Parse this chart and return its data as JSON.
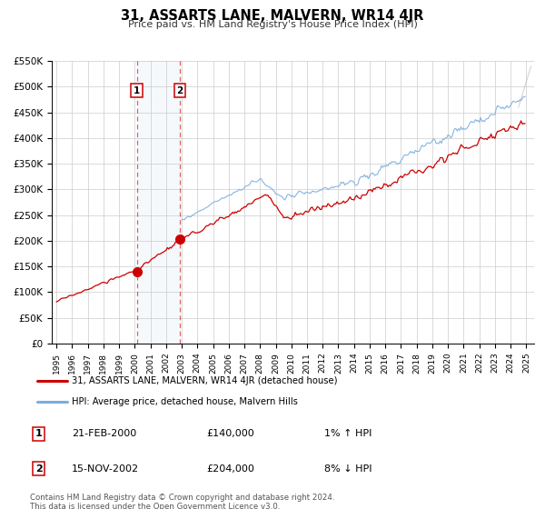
{
  "title": "31, ASSARTS LANE, MALVERN, WR14 4JR",
  "subtitle": "Price paid vs. HM Land Registry's House Price Index (HPI)",
  "ylim": [
    0,
    550000
  ],
  "yticks": [
    0,
    50000,
    100000,
    150000,
    200000,
    250000,
    300000,
    350000,
    400000,
    450000,
    500000,
    550000
  ],
  "ytick_labels": [
    "£0",
    "£50K",
    "£100K",
    "£150K",
    "£200K",
    "£250K",
    "£300K",
    "£350K",
    "£400K",
    "£450K",
    "£500K",
    "£550K"
  ],
  "xlim_start": 1994.7,
  "xlim_end": 2025.5,
  "sale1_x": 2000.13,
  "sale1_y": 140000,
  "sale2_x": 2002.88,
  "sale2_y": 204000,
  "line_color_property": "#cc0000",
  "line_color_hpi": "#7aade0",
  "legend_label_property": "31, ASSARTS LANE, MALVERN, WR14 4JR (detached house)",
  "legend_label_hpi": "HPI: Average price, detached house, Malvern Hills",
  "sale1_date": "21-FEB-2000",
  "sale1_price": "£140,000",
  "sale1_hpi": "1% ↑ HPI",
  "sale2_date": "15-NOV-2002",
  "sale2_price": "£204,000",
  "sale2_hpi": "8% ↓ HPI",
  "footnote1": "Contains HM Land Registry data © Crown copyright and database right 2024.",
  "footnote2": "This data is licensed under the Open Government Licence v3.0.",
  "background_color": "#ffffff",
  "plot_background": "#ffffff",
  "grid_color": "#cccccc"
}
